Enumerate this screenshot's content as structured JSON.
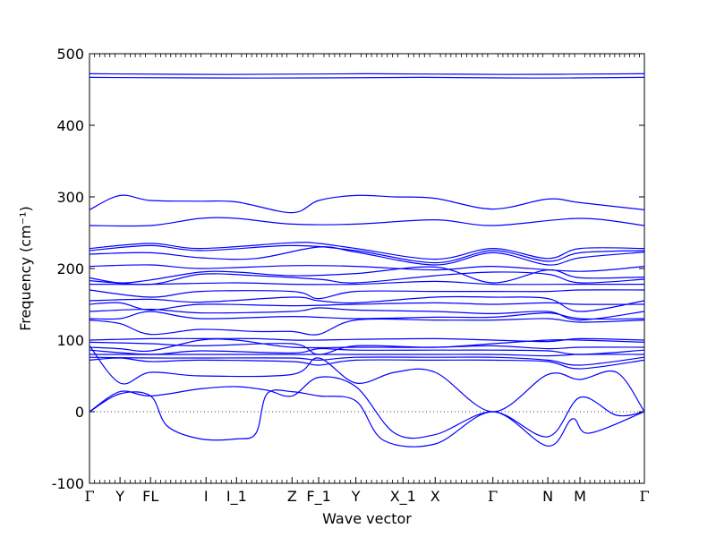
{
  "chart_data": {
    "type": "line",
    "xlabel": "Wave vector",
    "ylabel": "Frequency (cm⁻¹)",
    "ylim": [
      -100,
      500
    ],
    "yticks": [
      -100,
      0,
      100,
      200,
      300,
      400,
      500
    ],
    "zero_line": true,
    "line_color": "#0000ff",
    "high_symmetry_points": [
      {
        "label": "Γ",
        "x": 0.0
      },
      {
        "label": "Y",
        "x": 0.055
      },
      {
        "label": "FL",
        "x": 0.11
      },
      {
        "label": "I",
        "x": 0.21
      },
      {
        "label": "I_1",
        "x": 0.265
      },
      {
        "label": "Z",
        "x": 0.365
      },
      {
        "label": "F_1",
        "x": 0.413
      },
      {
        "label": "Y",
        "x": 0.48
      },
      {
        "label": "X_1",
        "x": 0.565
      },
      {
        "label": "X",
        "x": 0.623
      },
      {
        "label": "Γ",
        "x": 0.727
      },
      {
        "label": "N",
        "x": 0.826
      },
      {
        "label": "M",
        "x": 0.884
      },
      {
        "label": "Γ",
        "x": 1.0
      }
    ],
    "branches": [
      [
        [
          0,
          467
        ],
        [
          0.3,
          466
        ],
        [
          0.6,
          467
        ],
        [
          0.8,
          466
        ],
        [
          1,
          467
        ]
      ],
      [
        [
          0,
          472
        ],
        [
          0.25,
          471
        ],
        [
          0.5,
          472
        ],
        [
          0.75,
          471
        ],
        [
          1,
          472
        ]
      ],
      [
        [
          0,
          282
        ],
        [
          0.055,
          302
        ],
        [
          0.11,
          295
        ],
        [
          0.2,
          294
        ],
        [
          0.265,
          293
        ],
        [
          0.365,
          278
        ],
        [
          0.413,
          295
        ],
        [
          0.48,
          302
        ],
        [
          0.55,
          300
        ],
        [
          0.623,
          298
        ],
        [
          0.727,
          283
        ],
        [
          0.826,
          297
        ],
        [
          0.884,
          292
        ],
        [
          1,
          282
        ]
      ],
      [
        [
          0,
          260
        ],
        [
          0.11,
          260
        ],
        [
          0.2,
          270
        ],
        [
          0.265,
          270
        ],
        [
          0.365,
          262
        ],
        [
          0.48,
          262
        ],
        [
          0.623,
          268
        ],
        [
          0.727,
          260
        ],
        [
          0.884,
          270
        ],
        [
          1,
          260
        ]
      ],
      [
        [
          0,
          228
        ],
        [
          0.11,
          235
        ],
        [
          0.2,
          228
        ],
        [
          0.365,
          236
        ],
        [
          0.413,
          235
        ],
        [
          0.48,
          228
        ],
        [
          0.623,
          213
        ],
        [
          0.727,
          228
        ],
        [
          0.826,
          214
        ],
        [
          0.884,
          228
        ],
        [
          1,
          228
        ]
      ],
      [
        [
          0,
          225
        ],
        [
          0.11,
          232
        ],
        [
          0.2,
          225
        ],
        [
          0.365,
          232
        ],
        [
          0.48,
          225
        ],
        [
          0.623,
          208
        ],
        [
          0.727,
          225
        ],
        [
          0.826,
          210
        ],
        [
          0.884,
          222
        ],
        [
          1,
          225
        ]
      ],
      [
        [
          0,
          220
        ],
        [
          0.11,
          222
        ],
        [
          0.2,
          215
        ],
        [
          0.3,
          214
        ],
        [
          0.413,
          230
        ],
        [
          0.48,
          223
        ],
        [
          0.623,
          205
        ],
        [
          0.727,
          222
        ],
        [
          0.826,
          205
        ],
        [
          0.884,
          215
        ],
        [
          1,
          223
        ]
      ],
      [
        [
          0,
          203
        ],
        [
          0.11,
          205
        ],
        [
          0.2,
          200
        ],
        [
          0.365,
          204
        ],
        [
          0.48,
          203
        ],
        [
          0.623,
          198
        ],
        [
          0.727,
          203
        ],
        [
          0.884,
          196
        ],
        [
          1,
          203
        ]
      ],
      [
        [
          0,
          187
        ],
        [
          0.055,
          180
        ],
        [
          0.11,
          184
        ],
        [
          0.2,
          195
        ],
        [
          0.265,
          195
        ],
        [
          0.365,
          190
        ],
        [
          0.48,
          193
        ],
        [
          0.623,
          202
        ],
        [
          0.727,
          180
        ],
        [
          0.826,
          198
        ],
        [
          0.884,
          187
        ],
        [
          1,
          188
        ]
      ],
      [
        [
          0,
          183
        ],
        [
          0.11,
          178
        ],
        [
          0.2,
          192
        ],
        [
          0.3,
          190
        ],
        [
          0.413,
          185
        ],
        [
          0.48,
          180
        ],
        [
          0.623,
          190
        ],
        [
          0.727,
          195
        ],
        [
          0.826,
          192
        ],
        [
          0.884,
          180
        ],
        [
          1,
          185
        ]
      ],
      [
        [
          0,
          178
        ],
        [
          0.11,
          178
        ],
        [
          0.265,
          180
        ],
        [
          0.365,
          178
        ],
        [
          0.48,
          178
        ],
        [
          0.623,
          182
        ],
        [
          0.727,
          178
        ],
        [
          0.884,
          178
        ],
        [
          1,
          178
        ]
      ],
      [
        [
          0,
          170
        ],
        [
          0.11,
          160
        ],
        [
          0.2,
          168
        ],
        [
          0.365,
          168
        ],
        [
          0.413,
          158
        ],
        [
          0.48,
          168
        ],
        [
          0.623,
          168
        ],
        [
          0.727,
          168
        ],
        [
          0.826,
          168
        ],
        [
          0.884,
          170
        ],
        [
          1,
          170
        ]
      ],
      [
        [
          0,
          155
        ],
        [
          0.11,
          157
        ],
        [
          0.2,
          153
        ],
        [
          0.365,
          160
        ],
        [
          0.413,
          155
        ],
        [
          0.48,
          152
        ],
        [
          0.623,
          160
        ],
        [
          0.727,
          160
        ],
        [
          0.826,
          158
        ],
        [
          0.884,
          140
        ],
        [
          1,
          155
        ]
      ],
      [
        [
          0,
          150
        ],
        [
          0.055,
          152
        ],
        [
          0.11,
          142
        ],
        [
          0.2,
          150
        ],
        [
          0.365,
          148
        ],
        [
          0.48,
          150
        ],
        [
          0.623,
          152
        ],
        [
          0.727,
          150
        ],
        [
          0.826,
          152
        ],
        [
          0.884,
          150
        ],
        [
          1,
          150
        ]
      ],
      [
        [
          0,
          140
        ],
        [
          0.11,
          143
        ],
        [
          0.2,
          138
        ],
        [
          0.365,
          140
        ],
        [
          0.413,
          145
        ],
        [
          0.48,
          142
        ],
        [
          0.623,
          140
        ],
        [
          0.727,
          137
        ],
        [
          0.826,
          140
        ],
        [
          0.884,
          128
        ],
        [
          1,
          140
        ]
      ],
      [
        [
          0,
          130
        ],
        [
          0.055,
          130
        ],
        [
          0.11,
          140
        ],
        [
          0.2,
          130
        ],
        [
          0.365,
          133
        ],
        [
          0.48,
          130
        ],
        [
          0.623,
          132
        ],
        [
          0.727,
          132
        ],
        [
          0.826,
          138
        ],
        [
          0.884,
          130
        ],
        [
          1,
          130
        ]
      ],
      [
        [
          0,
          128
        ],
        [
          0.055,
          123
        ],
        [
          0.11,
          108
        ],
        [
          0.2,
          115
        ],
        [
          0.3,
          112
        ],
        [
          0.365,
          112
        ],
        [
          0.413,
          108
        ],
        [
          0.48,
          128
        ],
        [
          0.623,
          128
        ],
        [
          0.727,
          128
        ],
        [
          0.826,
          130
        ],
        [
          0.884,
          125
        ],
        [
          1,
          128
        ]
      ],
      [
        [
          0,
          100
        ],
        [
          0.11,
          102
        ],
        [
          0.2,
          102
        ],
        [
          0.3,
          102
        ],
        [
          0.365,
          100
        ],
        [
          0.413,
          100
        ],
        [
          0.48,
          101
        ],
        [
          0.623,
          102
        ],
        [
          0.727,
          100
        ],
        [
          0.826,
          98
        ],
        [
          0.884,
          102
        ],
        [
          1,
          100
        ]
      ],
      [
        [
          0,
          97
        ],
        [
          0.11,
          95
        ],
        [
          0.2,
          92
        ],
        [
          0.365,
          95
        ],
        [
          0.413,
          80
        ],
        [
          0.48,
          92
        ],
        [
          0.623,
          90
        ],
        [
          0.727,
          95
        ],
        [
          0.826,
          100
        ],
        [
          0.884,
          100
        ],
        [
          1,
          97
        ]
      ],
      [
        [
          0,
          90
        ],
        [
          0.055,
          88
        ],
        [
          0.11,
          85
        ],
        [
          0.2,
          100
        ],
        [
          0.265,
          100
        ],
        [
          0.365,
          90
        ],
        [
          0.48,
          90
        ],
        [
          0.623,
          90
        ],
        [
          0.727,
          92
        ],
        [
          0.826,
          88
        ],
        [
          0.884,
          90
        ],
        [
          1,
          90
        ]
      ],
      [
        [
          0,
          86
        ],
        [
          0.11,
          80
        ],
        [
          0.2,
          85
        ],
        [
          0.365,
          82
        ],
        [
          0.413,
          88
        ],
        [
          0.48,
          86
        ],
        [
          0.623,
          86
        ],
        [
          0.727,
          86
        ],
        [
          0.826,
          85
        ],
        [
          0.884,
          80
        ],
        [
          1,
          86
        ]
      ],
      [
        [
          0,
          80
        ],
        [
          0.055,
          80
        ],
        [
          0.11,
          80
        ],
        [
          0.2,
          80
        ],
        [
          0.365,
          80
        ],
        [
          0.413,
          80
        ],
        [
          0.48,
          80
        ],
        [
          0.623,
          80
        ],
        [
          0.727,
          80
        ],
        [
          0.826,
          78
        ],
        [
          0.884,
          80
        ],
        [
          1,
          80
        ]
      ],
      [
        [
          0,
          76
        ],
        [
          0.11,
          75
        ],
        [
          0.2,
          75
        ],
        [
          0.365,
          75
        ],
        [
          0.413,
          72
        ],
        [
          0.48,
          76
        ],
        [
          0.623,
          76
        ],
        [
          0.727,
          76
        ],
        [
          0.826,
          72
        ],
        [
          0.884,
          65
        ],
        [
          1,
          76
        ]
      ],
      [
        [
          0,
          72
        ],
        [
          0.055,
          75
        ],
        [
          0.11,
          70
        ],
        [
          0.2,
          72
        ],
        [
          0.365,
          70
        ],
        [
          0.413,
          65
        ],
        [
          0.48,
          72
        ],
        [
          0.623,
          72
        ],
        [
          0.727,
          72
        ],
        [
          0.826,
          70
        ],
        [
          0.884,
          60
        ],
        [
          1,
          72
        ]
      ],
      [
        [
          0,
          92
        ],
        [
          0.055,
          40
        ],
        [
          0.11,
          55
        ],
        [
          0.2,
          50
        ],
        [
          0.365,
          52
        ],
        [
          0.413,
          75
        ],
        [
          0.48,
          40
        ],
        [
          0.55,
          55
        ],
        [
          0.623,
          55
        ],
        [
          0.727,
          0
        ],
        [
          0.826,
          52
        ],
        [
          0.884,
          45
        ],
        [
          0.95,
          55
        ],
        [
          1,
          0
        ]
      ],
      [
        [
          0,
          0
        ],
        [
          0.055,
          28
        ],
        [
          0.11,
          22
        ],
        [
          0.2,
          32
        ],
        [
          0.265,
          35
        ],
        [
          0.32,
          30
        ],
        [
          0.365,
          22
        ],
        [
          0.413,
          48
        ],
        [
          0.48,
          35
        ],
        [
          0.55,
          -30
        ],
        [
          0.623,
          -32
        ],
        [
          0.727,
          0
        ],
        [
          0.826,
          -35
        ],
        [
          0.884,
          20
        ],
        [
          0.95,
          -5
        ],
        [
          1,
          0
        ]
      ],
      [
        [
          0,
          0
        ],
        [
          0.055,
          25
        ],
        [
          0.11,
          22
        ],
        [
          0.14,
          -20
        ],
        [
          0.2,
          -38
        ],
        [
          0.265,
          -38
        ],
        [
          0.3,
          -30
        ],
        [
          0.32,
          25
        ],
        [
          0.365,
          28
        ],
        [
          0.413,
          22
        ],
        [
          0.48,
          15
        ],
        [
          0.53,
          -40
        ],
        [
          0.623,
          -45
        ],
        [
          0.727,
          0
        ],
        [
          0.826,
          -48
        ],
        [
          0.87,
          -10
        ],
        [
          0.9,
          -30
        ],
        [
          1,
          0
        ]
      ]
    ]
  }
}
